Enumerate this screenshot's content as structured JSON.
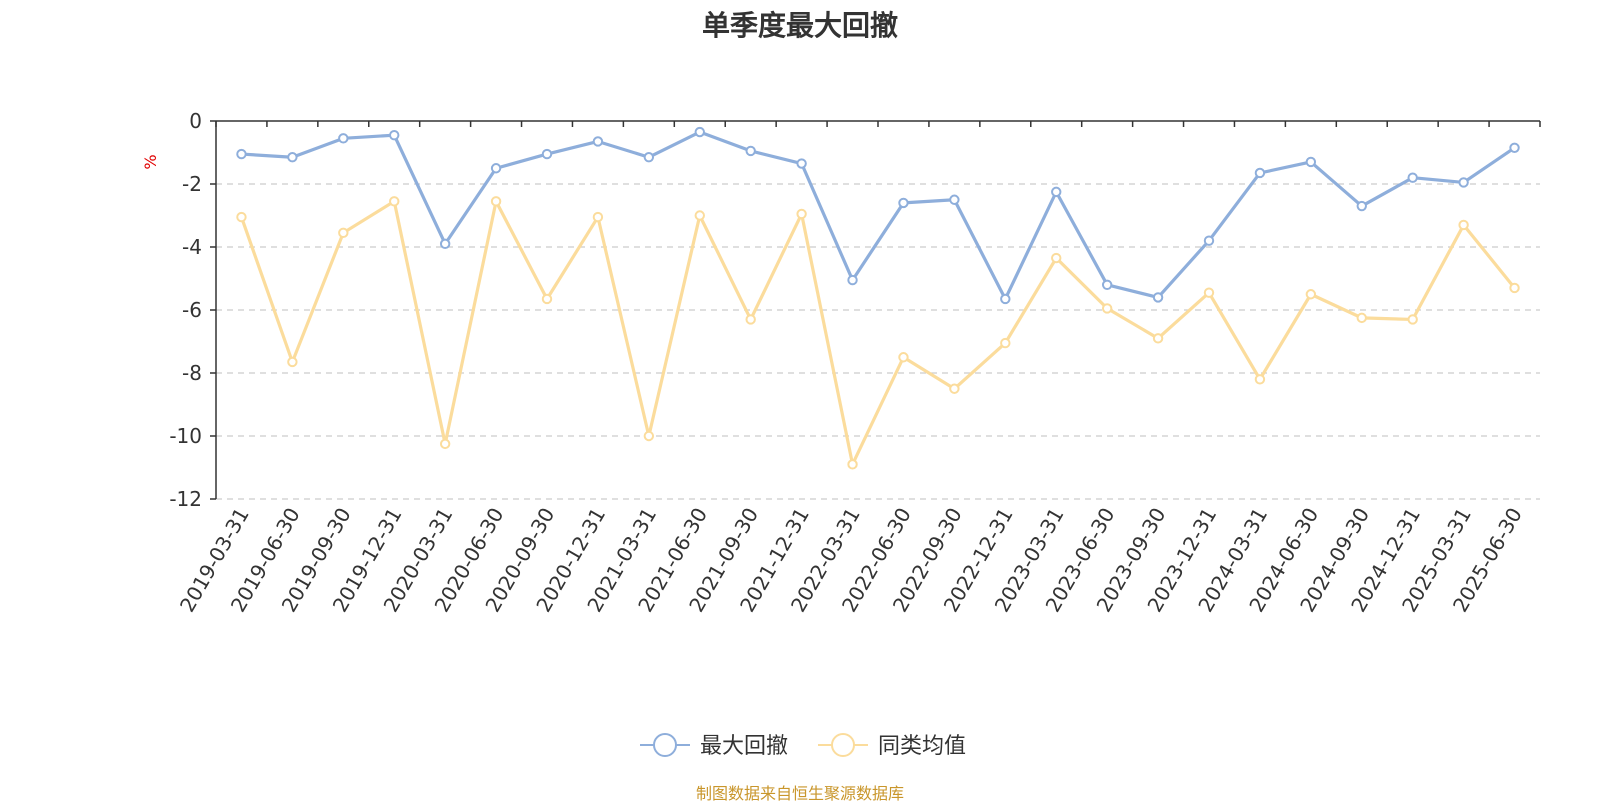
{
  "chart_data": {
    "type": "line",
    "title": "单季度最大回撤",
    "ylabel": "%",
    "ylim": [
      -12,
      0
    ],
    "yticks": [
      0,
      -2,
      -4,
      -6,
      -8,
      -10,
      -12
    ],
    "grid": true,
    "legend_position": "bottom",
    "categories": [
      "2019-03-31",
      "2019-06-30",
      "2019-09-30",
      "2019-12-31",
      "2020-03-31",
      "2020-06-30",
      "2020-09-30",
      "2020-12-31",
      "2021-03-31",
      "2021-06-30",
      "2021-09-30",
      "2021-12-31",
      "2022-03-31",
      "2022-06-30",
      "2022-09-30",
      "2022-12-31",
      "2023-03-31",
      "2023-06-30",
      "2023-09-30",
      "2023-12-31",
      "2024-03-31",
      "2024-06-30",
      "2024-09-30",
      "2024-12-31",
      "2025-03-31",
      "2025-06-30"
    ],
    "series": [
      {
        "name": "最大回撤",
        "color": "#8eaedb",
        "values": [
          -1.05,
          -1.15,
          -0.55,
          -0.45,
          -3.9,
          -1.5,
          -1.05,
          -0.65,
          -1.15,
          -0.35,
          -0.95,
          -1.35,
          -5.05,
          -2.6,
          -2.5,
          -5.65,
          -2.25,
          -5.2,
          -5.6,
          -3.8,
          -1.65,
          -1.3,
          -2.7,
          -1.8,
          -1.95,
          -0.85
        ]
      },
      {
        "name": "同类均值",
        "color": "#fbdc9c",
        "values": [
          -3.05,
          -7.65,
          -3.55,
          -2.55,
          -10.25,
          -2.55,
          -5.65,
          -3.05,
          -10.0,
          -3.0,
          -6.3,
          -2.95,
          -10.9,
          -7.5,
          -8.5,
          -7.05,
          -4.35,
          -5.95,
          -6.9,
          -5.45,
          -8.2,
          -5.5,
          -6.25,
          -6.3,
          -3.3,
          -5.3
        ]
      }
    ]
  },
  "source_note": "制图数据来自恒生聚源数据库"
}
